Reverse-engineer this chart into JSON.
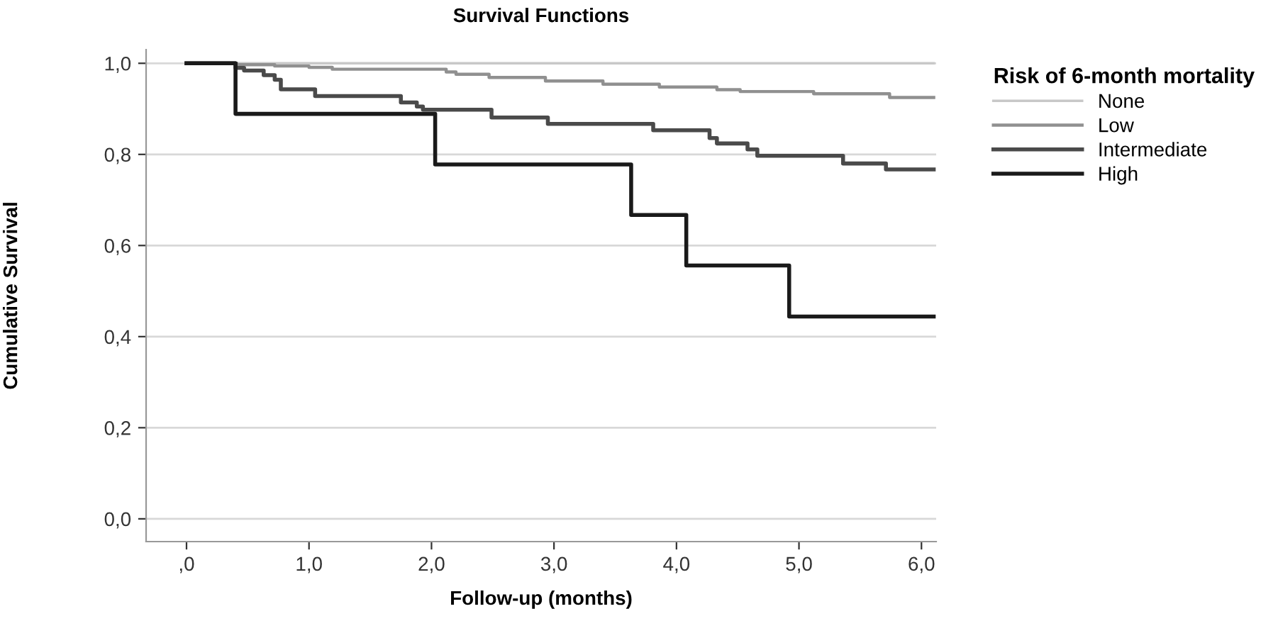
{
  "chart_data": {
    "type": "step",
    "title": "Survival Functions",
    "xlabel": "Follow-up (months)",
    "ylabel": "Cumulative Survival",
    "legend_title": "Risk of 6-month mortality",
    "legend": "top right",
    "grid": "y",
    "xlim": [
      -0.33,
      6.12
    ],
    "ylim": [
      -0.05,
      1.03
    ],
    "xticks": [
      {
        "value": 0,
        "label": ",0"
      },
      {
        "value": 1,
        "label": "1,0"
      },
      {
        "value": 2,
        "label": "2,0"
      },
      {
        "value": 3,
        "label": "3,0"
      },
      {
        "value": 4,
        "label": "4,0"
      },
      {
        "value": 5,
        "label": "5,0"
      },
      {
        "value": 6,
        "label": "6,0"
      }
    ],
    "yticks": [
      {
        "value": 0,
        "label": "0,0"
      },
      {
        "value": 0.2,
        "label": "0,2"
      },
      {
        "value": 0.4,
        "label": "0,4"
      },
      {
        "value": 0.6,
        "label": "0,6"
      },
      {
        "value": 0.8,
        "label": "0,8"
      },
      {
        "value": 1,
        "label": "1,0"
      }
    ],
    "series": [
      {
        "name": "None",
        "color": "#c8c8c8",
        "x": [
          0,
          6.1
        ],
        "values": [
          1,
          1
        ]
      },
      {
        "name": "Low",
        "color": "#909090",
        "x": [
          0,
          0.41,
          0.72,
          1.0,
          1.19,
          2.12,
          2.2,
          2.47,
          2.93,
          3.4,
          3.86,
          4.33,
          4.52,
          5.12,
          5.74,
          6.1
        ],
        "values": [
          1,
          0.997,
          0.994,
          0.991,
          0.987,
          0.981,
          0.976,
          0.969,
          0.961,
          0.954,
          0.948,
          0.942,
          0.938,
          0.933,
          0.925,
          0.925
        ]
      },
      {
        "name": "Intermediate",
        "color": "#4a4a4a",
        "x": [
          0,
          0.4,
          0.47,
          0.63,
          0.72,
          0.77,
          1.05,
          1.75,
          1.88,
          1.93,
          2.49,
          2.95,
          3.81,
          4.27,
          4.33,
          4.58,
          4.66,
          5.36,
          5.71,
          6.1
        ],
        "values": [
          1,
          0.99,
          0.984,
          0.974,
          0.964,
          0.943,
          0.928,
          0.914,
          0.905,
          0.898,
          0.881,
          0.867,
          0.853,
          0.836,
          0.824,
          0.811,
          0.797,
          0.78,
          0.767,
          0.767
        ]
      },
      {
        "name": "High",
        "color": "#1a1a1a",
        "x": [
          0,
          0.4,
          2.03,
          3.63,
          4.08,
          4.92,
          6.1
        ],
        "values": [
          1,
          0.889,
          0.778,
          0.667,
          0.556,
          0.444,
          0.444
        ]
      }
    ]
  }
}
